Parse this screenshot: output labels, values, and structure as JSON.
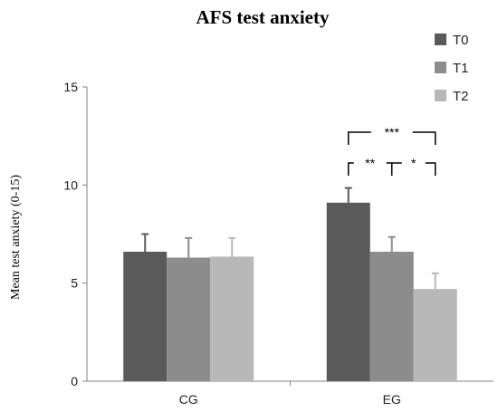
{
  "chart_data": {
    "type": "bar",
    "title": "AFS test anxiety",
    "ylabel": "Mean test anxiety (0-15)",
    "xlabel": "",
    "ylim": [
      0,
      15
    ],
    "yticks": [
      "0",
      "5",
      "10",
      "15"
    ],
    "categories": [
      "CG",
      "EG"
    ],
    "legend_position": "top-right",
    "series": [
      {
        "name": "T0",
        "color": "#5a5a5a",
        "values": [
          6.6,
          9.1
        ],
        "errors": [
          0.9,
          0.75
        ]
      },
      {
        "name": "T1",
        "color": "#8c8c8c",
        "values": [
          6.3,
          6.6
        ],
        "errors": [
          1.0,
          0.75
        ]
      },
      {
        "name": "T2",
        "color": "#b8b8b8",
        "values": [
          6.35,
          4.7
        ],
        "errors": [
          0.95,
          0.8
        ]
      }
    ],
    "significance": [
      {
        "category": "EG",
        "from": "T0",
        "to": "T2",
        "label": "***",
        "level": 2
      },
      {
        "category": "EG",
        "from": "T0",
        "to": "T1",
        "label": "**",
        "level": 1
      },
      {
        "category": "EG",
        "from": "T1",
        "to": "T2",
        "label": "*",
        "level": 1
      }
    ]
  }
}
